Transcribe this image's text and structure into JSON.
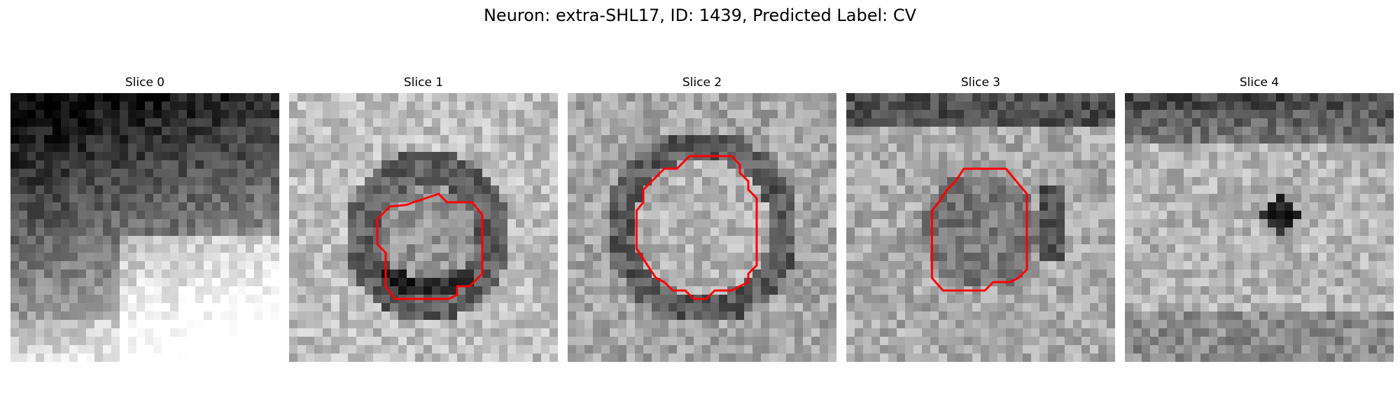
{
  "figure": {
    "title": "Neuron: extra-SHL17, ID: 1439, Predicted Label: CV"
  },
  "panels": [
    {
      "title": "Slice 0",
      "has_contour": false
    },
    {
      "title": "Slice 1",
      "has_contour": true
    },
    {
      "title": "Slice 2",
      "has_contour": true
    },
    {
      "title": "Slice 3",
      "has_contour": true
    },
    {
      "title": "Slice 4",
      "has_contour": false
    }
  ],
  "colors": {
    "contour": "#ff0000",
    "background": "#ffffff"
  }
}
